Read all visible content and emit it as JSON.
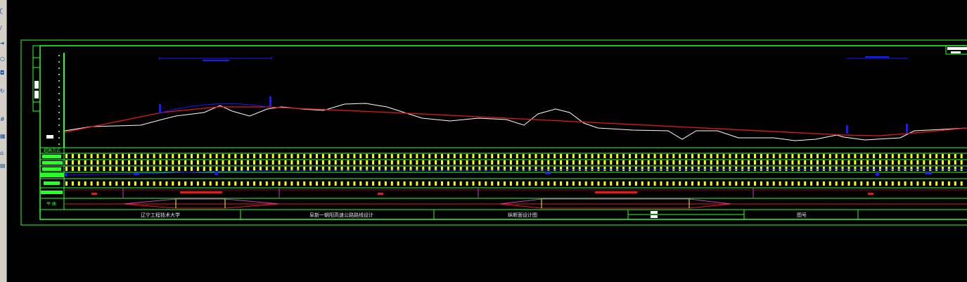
{
  "drawing": {
    "title_block": {
      "school": "辽宁工程技术大学",
      "project": "阜新一朝阳高速公路路线设计",
      "sheet_name": "纵断面设计图",
      "sheet_no_label": "图号"
    },
    "row_labels": {
      "top": "超高方式",
      "bottom": "平 曲"
    },
    "colors": {
      "frame": "#2aff2a",
      "ground_line": "#ffffff",
      "grade_line": "#e01b1b",
      "vertical_curve": "#1a1aff",
      "ticks": "#ffff00"
    }
  },
  "toolbar": {
    "icons": [
      "select-icon",
      "line-icon",
      "move-icon",
      "circle-icon",
      "zoom-icon",
      "rotate-icon",
      "grid-icon",
      "table-icon",
      "house-icon",
      "layer-icon"
    ]
  }
}
